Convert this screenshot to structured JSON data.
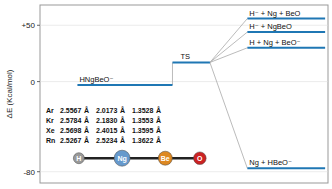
{
  "chart_data": {
    "type": "energy",
    "y_label": "ΔE (Kcal/mol)",
    "categories": [
      "HNgBeO⁻",
      "TS",
      "H⁻ + Ng + BeO",
      "H⁻ + NgBeO",
      "H + Ng + BeO⁻",
      "Ng + HBeO⁻"
    ],
    "values": [
      -3,
      17,
      56,
      44,
      30,
      -77
    ],
    "ylim": [
      -90,
      68
    ],
    "yticks": [
      -80,
      0,
      {
        "value": 50,
        "label": "+50"
      }
    ],
    "table": [
      [
        "Ar",
        "2.5567",
        "Å",
        "2.0173",
        "Å",
        "1.3528",
        "Å"
      ],
      [
        "Kr",
        "2.5784",
        "Å",
        "2.1830",
        "Å",
        "1.3553",
        "Å"
      ],
      [
        "Xe",
        "2.5698",
        "Å",
        "2.4015",
        "Å",
        "1.3595",
        "Å"
      ],
      [
        "Rn",
        "2.5267",
        "Å",
        "2.5234",
        "Å",
        "1.3622",
        "Å"
      ]
    ],
    "atoms": [
      {
        "label": "H",
        "color": "#999999"
      },
      {
        "label": "Ng",
        "color": "#6699cc"
      },
      {
        "label": "Be",
        "color": "#dd8822"
      },
      {
        "label": "O",
        "color": "#cc2222"
      }
    ]
  }
}
